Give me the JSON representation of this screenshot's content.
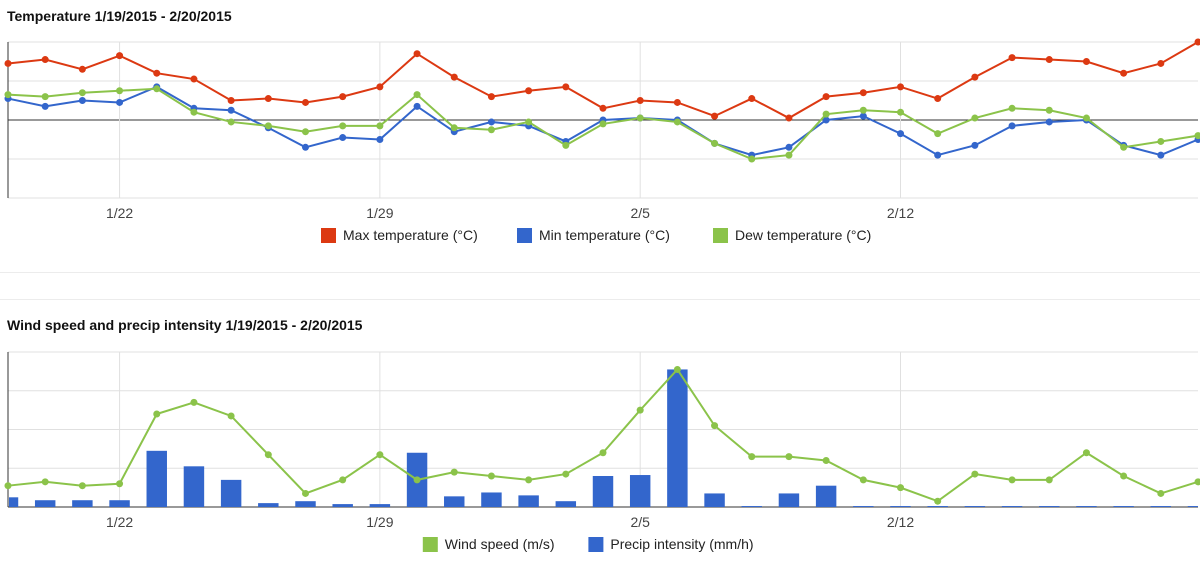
{
  "chart_data": [
    {
      "type": "line",
      "title": "Temperature 1/19/2015 - 2/20/2015",
      "x": [
        "1/19",
        "1/20",
        "1/21",
        "1/22",
        "1/23",
        "1/24",
        "1/25",
        "1/26",
        "1/27",
        "1/28",
        "1/29",
        "1/30",
        "1/31",
        "2/1",
        "2/2",
        "2/3",
        "2/4",
        "2/5",
        "2/6",
        "2/7",
        "2/8",
        "2/9",
        "2/10",
        "2/11",
        "2/12",
        "2/13",
        "2/14",
        "2/15",
        "2/16",
        "2/17",
        "2/18",
        "2/19",
        "2/20"
      ],
      "xticks": [
        "1/22",
        "1/29",
        "2/5",
        "2/12"
      ],
      "ylim": [
        -4,
        4
      ],
      "grid": true,
      "legend": "bottom",
      "series": [
        {
          "name": "Max temperature (°C)",
          "color": "#dc3912",
          "values": [
            2.9,
            3.1,
            2.6,
            3.3,
            2.4,
            2.1,
            1.0,
            1.1,
            0.9,
            1.2,
            1.7,
            3.4,
            2.2,
            1.2,
            1.5,
            1.7,
            0.6,
            1.0,
            0.9,
            0.2,
            1.1,
            0.1,
            1.2,
            1.4,
            1.7,
            1.1,
            2.2,
            3.2,
            3.1,
            3.0,
            2.4,
            2.9,
            4.0
          ]
        },
        {
          "name": "Min temperature (°C)",
          "color": "#3366cc",
          "values": [
            1.1,
            0.7,
            1.0,
            0.9,
            1.7,
            0.6,
            0.5,
            -0.4,
            -1.4,
            -0.9,
            -1.0,
            0.7,
            -0.6,
            -0.1,
            -0.3,
            -1.1,
            0.0,
            0.1,
            0.0,
            -1.2,
            -1.8,
            -1.4,
            0.0,
            0.2,
            -0.7,
            -1.8,
            -1.3,
            -0.3,
            -0.1,
            0.0,
            -1.3,
            -1.8,
            -1.0
          ]
        },
        {
          "name": "Dew temperature (°C)",
          "color": "#8bc34a",
          "values": [
            1.3,
            1.2,
            1.4,
            1.5,
            1.6,
            0.4,
            -0.1,
            -0.3,
            -0.6,
            -0.3,
            -0.3,
            1.3,
            -0.4,
            -0.5,
            -0.1,
            -1.3,
            -0.2,
            0.1,
            -0.1,
            -1.2,
            -2.0,
            -1.8,
            0.3,
            0.5,
            0.4,
            -0.7,
            0.1,
            0.6,
            0.5,
            0.1,
            -1.4,
            -1.1,
            -0.8
          ]
        }
      ]
    },
    {
      "type": "bar",
      "title": "Wind speed and precip intensity 1/19/2015 - 2/20/2015",
      "x": [
        "1/19",
        "1/20",
        "1/21",
        "1/22",
        "1/23",
        "1/24",
        "1/25",
        "1/26",
        "1/27",
        "1/28",
        "1/29",
        "1/30",
        "1/31",
        "2/1",
        "2/2",
        "2/3",
        "2/4",
        "2/5",
        "2/6",
        "2/7",
        "2/8",
        "2/9",
        "2/10",
        "2/11",
        "2/12",
        "2/13",
        "2/14",
        "2/15",
        "2/16",
        "2/17",
        "2/18",
        "2/19",
        "2/20"
      ],
      "xticks": [
        "1/22",
        "1/29",
        "2/5",
        "2/12"
      ],
      "ylim": [
        0,
        8
      ],
      "grid": true,
      "legend": "bottom",
      "series": [
        {
          "name": "Wind speed (m/s)",
          "type": "line",
          "color": "#8bc34a",
          "values": [
            1.1,
            1.3,
            1.1,
            1.2,
            4.8,
            5.4,
            4.7,
            2.7,
            0.7,
            1.4,
            2.7,
            1.4,
            1.8,
            1.6,
            1.4,
            1.7,
            2.8,
            5.0,
            7.1,
            4.2,
            2.6,
            2.6,
            2.4,
            1.4,
            1.0,
            0.3,
            1.7,
            1.4,
            1.4,
            2.8,
            1.6,
            0.7,
            1.3
          ]
        },
        {
          "name": "Precip intensity (mm/h)",
          "type": "bar",
          "color": "#3366cc",
          "values": [
            0.5,
            0.35,
            0.35,
            0.35,
            2.9,
            2.1,
            1.4,
            0.2,
            0.3,
            0.15,
            0.15,
            2.8,
            0.55,
            0.75,
            0.6,
            0.3,
            1.6,
            1.65,
            7.1,
            0.7,
            0.05,
            0.7,
            1.1,
            0.05,
            0.05,
            0.05,
            0.05,
            0.05,
            0.05,
            0.05,
            0.05,
            0.05,
            0.05
          ]
        }
      ]
    }
  ]
}
